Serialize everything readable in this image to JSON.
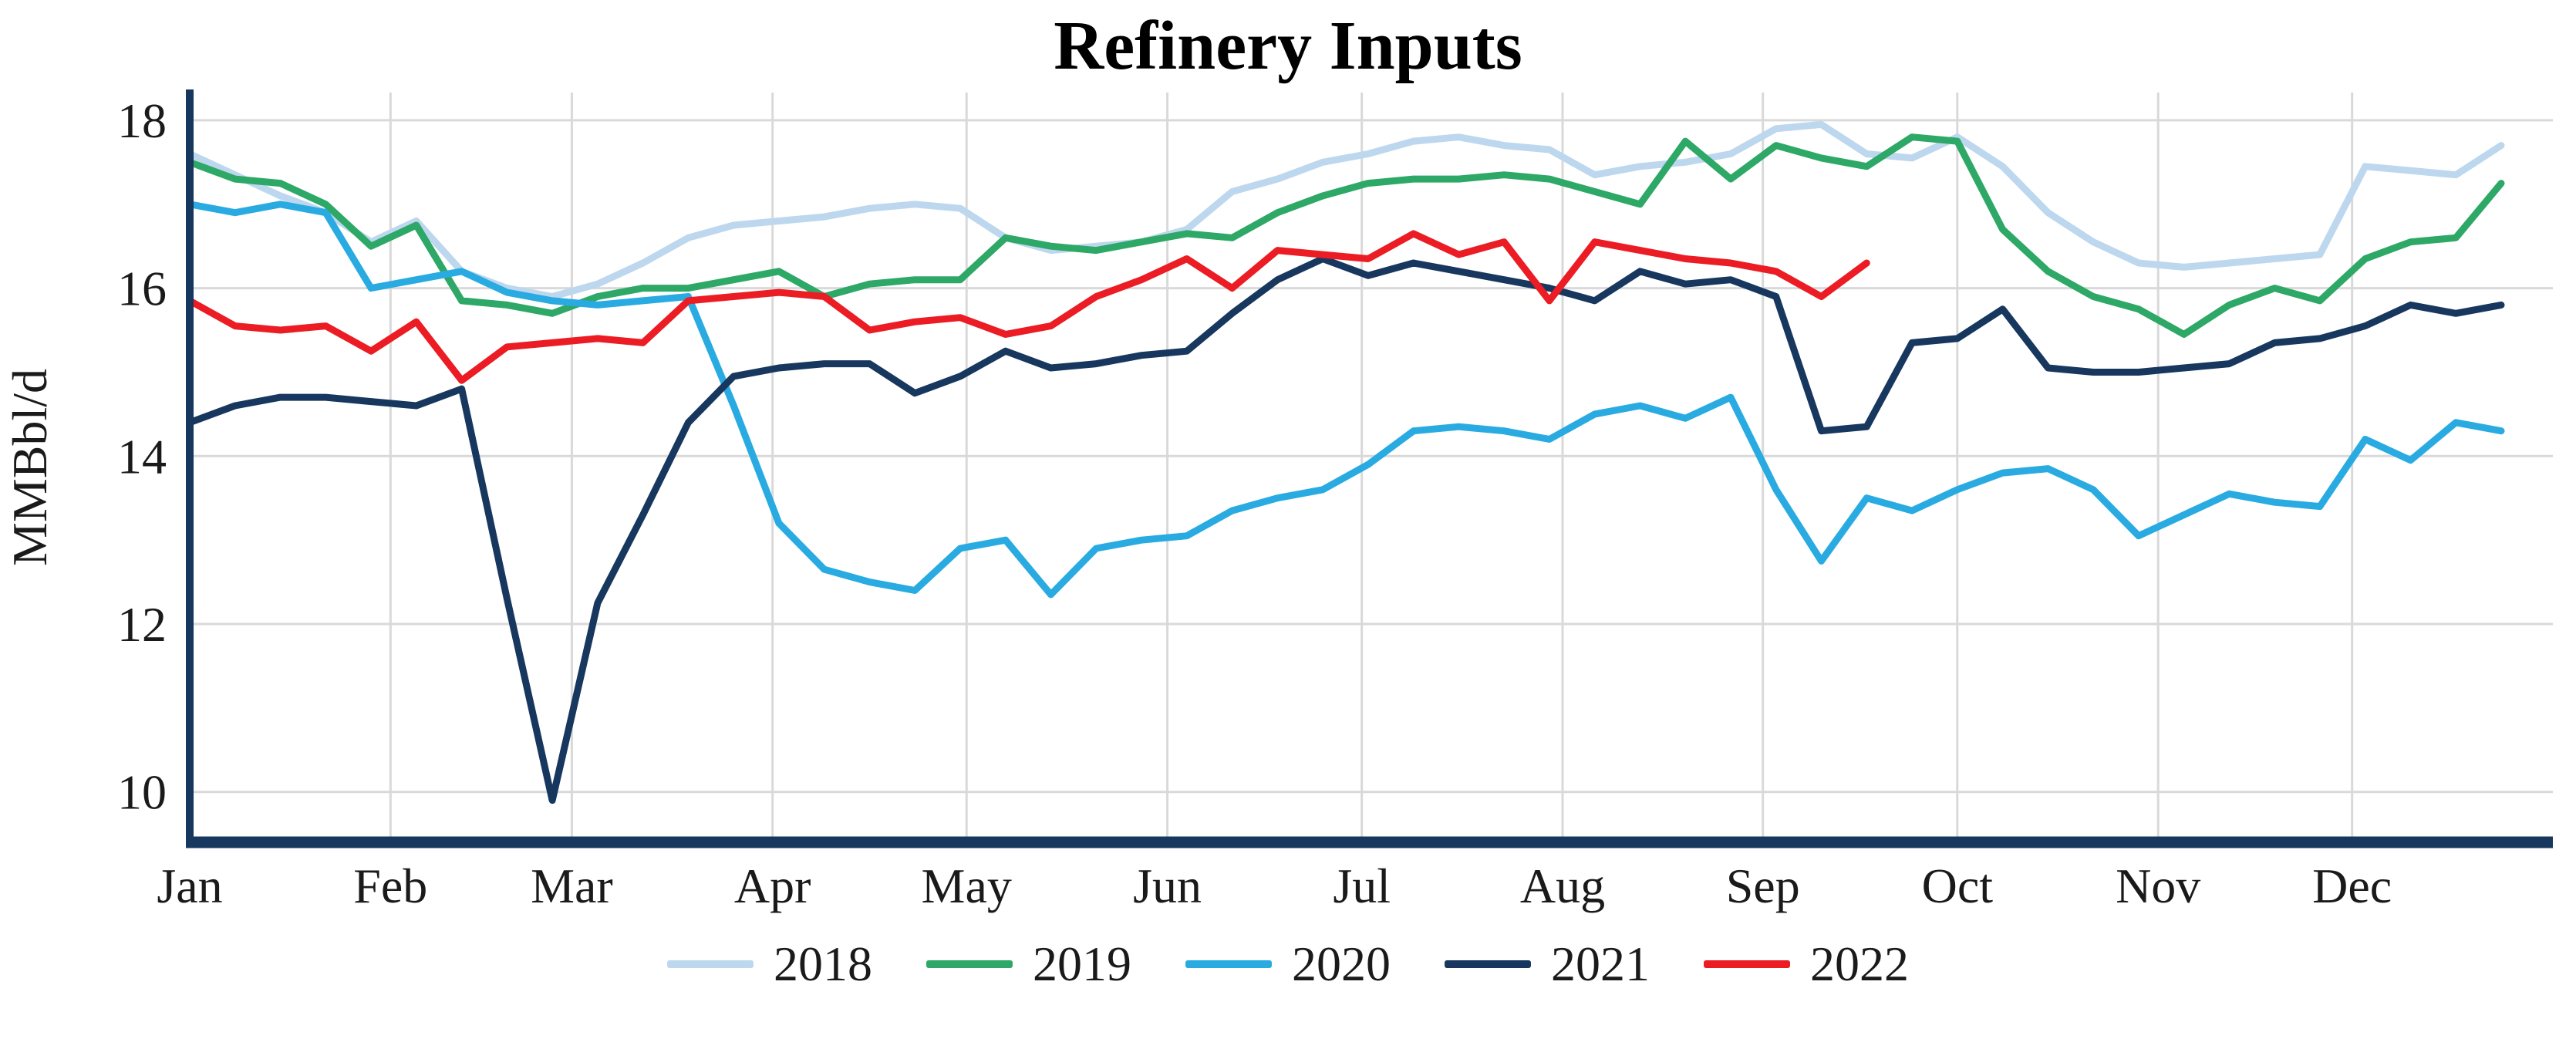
{
  "chart_data": {
    "type": "line",
    "title": "Refinery Inputs",
    "xlabel": "",
    "x_unit": "week of year (weekly data points)",
    "grid": true,
    "legend_position": "bottom",
    "grid_color": "#D9D9D9",
    "axis_color": "#17375E",
    "x_axis": {
      "tick_labels": [
        "Jan",
        "Feb",
        "Mar",
        "Apr",
        "May",
        "Jun",
        "Jul",
        "Aug",
        "Sep",
        "Oct",
        "Nov",
        "Dec"
      ],
      "tick_week_positions": [
        0,
        4.43,
        8.43,
        12.86,
        17.14,
        21.57,
        25.86,
        30.29,
        34.71,
        39.0,
        43.43,
        47.71
      ],
      "weeks_total": 52.14
    },
    "y_axis": {
      "label": "MMBbl/d",
      "ticks": [
        10,
        12,
        14,
        16,
        18
      ],
      "lim": [
        9.4,
        18.33
      ]
    },
    "series": [
      {
        "name": "2018",
        "color": "#BDD7EE",
        "values": [
          17.6,
          17.35,
          17.1,
          16.9,
          16.55,
          16.8,
          16.2,
          16.0,
          15.9,
          16.05,
          16.3,
          16.6,
          16.75,
          16.8,
          16.85,
          16.95,
          17.0,
          16.95,
          16.6,
          16.45,
          16.5,
          16.55,
          16.7,
          17.15,
          17.3,
          17.5,
          17.6,
          17.75,
          17.8,
          17.7,
          17.65,
          17.35,
          17.45,
          17.5,
          17.6,
          17.9,
          17.95,
          17.6,
          17.55,
          17.8,
          17.45,
          16.9,
          16.55,
          16.3,
          16.25,
          16.3,
          16.35,
          16.4,
          17.45,
          17.4,
          17.35,
          17.7
        ]
      },
      {
        "name": "2019",
        "color": "#2EA866",
        "values": [
          17.5,
          17.3,
          17.25,
          17.0,
          16.5,
          16.75,
          15.85,
          15.8,
          15.7,
          15.9,
          16.0,
          16.0,
          16.1,
          16.2,
          15.9,
          16.05,
          16.1,
          16.1,
          16.6,
          16.5,
          16.45,
          16.55,
          16.65,
          16.6,
          16.9,
          17.1,
          17.25,
          17.3,
          17.3,
          17.35,
          17.3,
          17.15,
          17.0,
          17.75,
          17.3,
          17.7,
          17.55,
          17.45,
          17.8,
          17.75,
          16.7,
          16.2,
          15.9,
          15.75,
          15.45,
          15.8,
          16.0,
          15.85,
          16.35,
          16.55,
          16.6,
          17.25
        ]
      },
      {
        "name": "2020",
        "color": "#29ABE2",
        "values": [
          17.0,
          16.9,
          17.0,
          16.9,
          16.0,
          16.1,
          16.2,
          15.95,
          15.85,
          15.8,
          15.85,
          15.9,
          14.6,
          13.2,
          12.65,
          12.5,
          12.4,
          12.9,
          13.0,
          12.35,
          12.9,
          13.0,
          13.05,
          13.35,
          13.5,
          13.6,
          13.9,
          14.3,
          14.35,
          14.3,
          14.2,
          14.5,
          14.6,
          14.45,
          14.7,
          13.6,
          12.75,
          13.5,
          13.35,
          13.6,
          13.8,
          13.85,
          13.6,
          13.05,
          13.3,
          13.55,
          13.45,
          13.4,
          14.2,
          13.95,
          14.4,
          14.3
        ]
      },
      {
        "name": "2021",
        "color": "#17375E",
        "values": [
          14.4,
          14.6,
          14.7,
          14.7,
          14.65,
          14.6,
          14.8,
          12.3,
          9.9,
          12.25,
          13.3,
          14.4,
          14.95,
          15.05,
          15.1,
          15.1,
          14.75,
          14.95,
          15.25,
          15.05,
          15.1,
          15.2,
          15.25,
          15.7,
          16.1,
          16.35,
          16.15,
          16.3,
          16.2,
          16.1,
          16.0,
          15.85,
          16.2,
          16.05,
          16.1,
          15.9,
          14.3,
          14.35,
          15.35,
          15.4,
          15.75,
          15.05,
          15.0,
          15.0,
          15.05,
          15.1,
          15.35,
          15.4,
          15.55,
          15.8,
          15.7,
          15.8
        ]
      },
      {
        "name": "2022",
        "color": "#EC1C24",
        "values": [
          15.85,
          15.55,
          15.5,
          15.55,
          15.25,
          15.6,
          14.9,
          15.3,
          15.35,
          15.4,
          15.35,
          15.85,
          15.9,
          15.95,
          15.9,
          15.5,
          15.6,
          15.65,
          15.45,
          15.55,
          15.9,
          16.1,
          16.35,
          16.0,
          16.45,
          16.4,
          16.35,
          16.65,
          16.4,
          16.55,
          15.85,
          16.55,
          16.45,
          16.35,
          16.3,
          16.2,
          15.9,
          16.3
        ]
      }
    ]
  }
}
